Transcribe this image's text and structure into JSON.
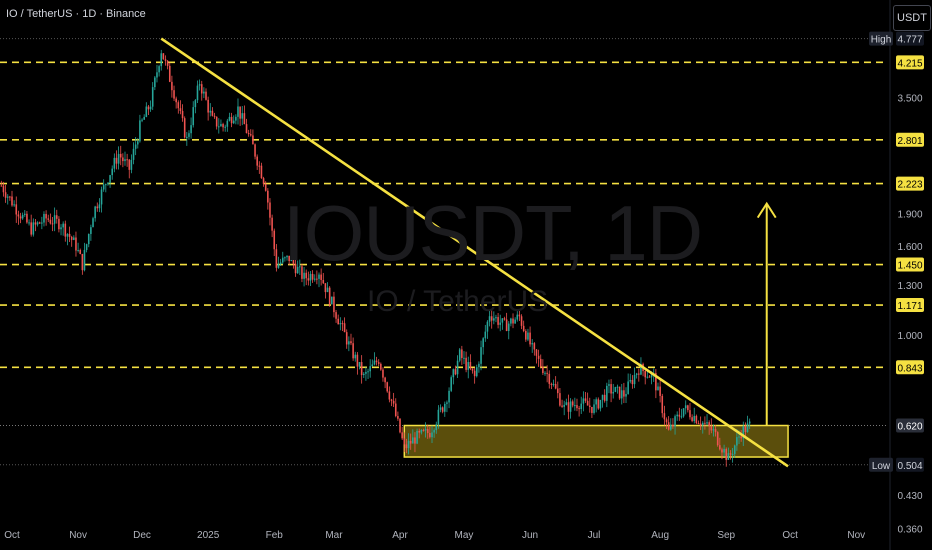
{
  "header": {
    "title": "IO / TetherUS · 1D · Binance",
    "currency_button": "USDT"
  },
  "watermark": {
    "symbol": "IOUSDT, 1D",
    "name": "IO / TetherUS"
  },
  "colors": {
    "up": "#26a69a",
    "down": "#ef5350",
    "trendline": "#f5e142",
    "zone_fill": "#6b5c0e",
    "level_label_bg": "#f5e142"
  },
  "chart_data": {
    "type": "candlestick",
    "y_scale": "log",
    "ylim": [
      0.33,
      5.0
    ],
    "x_ticks": [
      "Oct",
      "Nov",
      "Dec",
      "2025",
      "Feb",
      "Mar",
      "Apr",
      "May",
      "Jun",
      "Jul",
      "Aug",
      "Sep",
      "Oct",
      "Nov"
    ],
    "y_ticks": [
      "3.500",
      "1.900",
      "1.600",
      "1.300",
      "1.000",
      "0.430",
      "0.360"
    ],
    "levels": [
      {
        "value": 4.215,
        "label": "4.215"
      },
      {
        "value": 2.801,
        "label": "2.801"
      },
      {
        "value": 2.223,
        "label": "2.223"
      },
      {
        "value": 1.45,
        "label": "1.450"
      },
      {
        "value": 1.171,
        "label": "1.171"
      },
      {
        "value": 0.843,
        "label": "0.843"
      }
    ],
    "high": {
      "label": "High",
      "value": "4.777"
    },
    "low": {
      "label": "Low",
      "value": "0.504"
    },
    "last_price": "0.620",
    "support_zone": [
      0.525,
      0.62
    ],
    "trendline": {
      "from": [
        "Dec 10 2024",
        4.78
      ],
      "to": [
        "Sep 30 2025",
        0.5
      ]
    },
    "target_arrow": {
      "date": "Sep 20 2025",
      "from": 0.62,
      "to": 2.0
    },
    "ohlc_path": [
      [
        "Sep 26 2024",
        2.2
      ],
      [
        "Oct 3 2024",
        1.95
      ],
      [
        "Oct 10 2024",
        1.75
      ],
      [
        "Oct 17 2024",
        1.85
      ],
      [
        "Oct 24 2024",
        1.8
      ],
      [
        "Oct 31 2024",
        1.6
      ],
      [
        "Nov 3 2024",
        1.45
      ],
      [
        "Nov 8 2024",
        1.9
      ],
      [
        "Nov 15 2024",
        2.3
      ],
      [
        "Nov 20 2024",
        2.6
      ],
      [
        "Nov 25 2024",
        2.4
      ],
      [
        "Nov 30 2024",
        3.0
      ],
      [
        "Dec 5 2024",
        3.4
      ],
      [
        "Dec 10 2024",
        4.5
      ],
      [
        "Dec 16 2024",
        3.6
      ],
      [
        "Dec 22 2024",
        2.8
      ],
      [
        "Dec 28 2024",
        3.8
      ],
      [
        "Jan 3 2025",
        3.1
      ],
      [
        "Jan 8 2025",
        3.0
      ],
      [
        "Jan 15 2025",
        3.3
      ],
      [
        "Jan 22 2025",
        2.7
      ],
      [
        "Jan 28 2025",
        2.2
      ],
      [
        "Feb 2 2025",
        1.45
      ],
      [
        "Feb 8 2025",
        1.5
      ],
      [
        "Feb 15 2025",
        1.35
      ],
      [
        "Feb 22 2025",
        1.4
      ],
      [
        "Mar 1 2025",
        1.15
      ],
      [
        "Mar 8 2025",
        0.95
      ],
      [
        "Mar 15 2025",
        0.8
      ],
      [
        "Mar 22 2025",
        0.88
      ],
      [
        "Mar 29 2025",
        0.68
      ],
      [
        "Apr 3 2025",
        0.55
      ],
      [
        "Apr 8 2025",
        0.58
      ],
      [
        "Apr 15 2025",
        0.6
      ],
      [
        "Apr 22 2025",
        0.7
      ],
      [
        "Apr 29 2025",
        0.9
      ],
      [
        "May 6 2025",
        0.8
      ],
      [
        "May 13 2025",
        1.12
      ],
      [
        "May 20 2025",
        1.05
      ],
      [
        "May 27 2025",
        1.1
      ],
      [
        "Jun 3 2025",
        0.9
      ],
      [
        "Jun 10 2025",
        0.8
      ],
      [
        "Jun 17 2025",
        0.68
      ],
      [
        "Jun 24 2025",
        0.7
      ],
      [
        "Jul 1 2025",
        0.68
      ],
      [
        "Jul 8 2025",
        0.75
      ],
      [
        "Jul 15 2025",
        0.73
      ],
      [
        "Jul 22 2025",
        0.84
      ],
      [
        "Jul 29 2025",
        0.8
      ],
      [
        "Aug 5 2025",
        0.6
      ],
      [
        "Aug 12 2025",
        0.68
      ],
      [
        "Aug 19 2025",
        0.64
      ],
      [
        "Aug 26 2025",
        0.6
      ],
      [
        "Sep 2 2025",
        0.52
      ],
      [
        "Sep 8 2025",
        0.6
      ],
      [
        "Sep 12 2025",
        0.62
      ]
    ]
  }
}
